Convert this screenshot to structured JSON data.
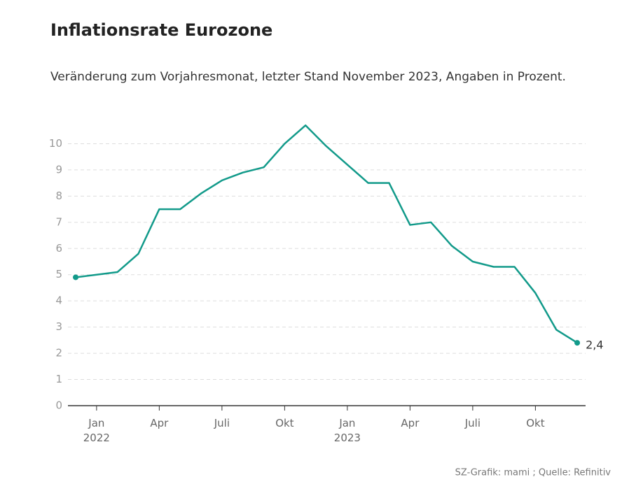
{
  "chart_data": {
    "type": "line",
    "title": "Inflationsrate Eurozone",
    "subtitle": "Veränderung zum Vorjahresmonat, letzter Stand November 2023, Angaben in Prozent.",
    "source": "SZ-Grafik: mami ; Quelle: Refinitiv",
    "x": [
      0,
      1,
      2,
      3,
      4,
      5,
      6,
      7,
      8,
      9,
      10,
      11,
      12,
      13,
      14,
      15,
      16,
      17,
      18,
      19,
      20,
      21,
      22,
      23,
      24
    ],
    "series": [
      {
        "name": "Inflationsrate",
        "color": "#129a8a",
        "values": [
          4.9,
          5.0,
          5.1,
          5.8,
          7.5,
          7.5,
          8.1,
          8.6,
          8.9,
          9.1,
          10.0,
          10.7,
          9.9,
          9.2,
          8.5,
          8.5,
          6.9,
          7.0,
          6.1,
          5.5,
          5.3,
          5.3,
          4.3,
          2.9,
          2.4
        ],
        "value_labels": [
          null,
          null,
          null,
          null,
          null,
          null,
          null,
          null,
          null,
          null,
          null,
          null,
          null,
          null,
          null,
          null,
          null,
          null,
          null,
          null,
          null,
          null,
          null,
          null,
          "2,4"
        ]
      }
    ],
    "xlim": [
      -0.37,
      24.4
    ],
    "xticks": [
      {
        "value": 1,
        "label": "Jan 2022"
      },
      {
        "value": 4,
        "label": "Apr"
      },
      {
        "value": 7,
        "label": "Juli"
      },
      {
        "value": 10,
        "label": "Okt"
      },
      {
        "value": 13,
        "label": "Jan 2023"
      },
      {
        "value": 16,
        "label": "Apr"
      },
      {
        "value": 19,
        "label": "Juli"
      },
      {
        "value": 22,
        "label": "Okt"
      }
    ],
    "ylim": [
      0,
      11
    ],
    "yticks": [
      0,
      1,
      2,
      3,
      4,
      5,
      6,
      7,
      8,
      9,
      10
    ],
    "grid": true
  }
}
